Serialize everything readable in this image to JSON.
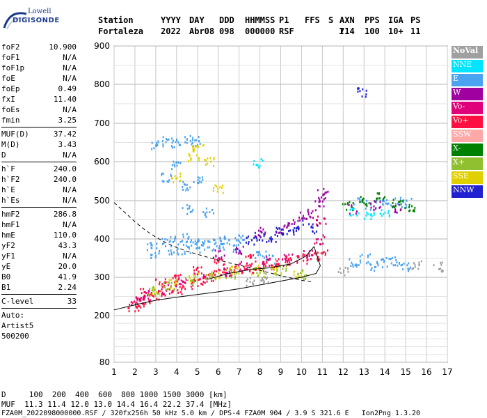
{
  "logo": {
    "line1": "Lowell",
    "line2": "DIGISONDE"
  },
  "header": {
    "labels": [
      "Station",
      "YYYY",
      "DAY",
      "DDD",
      "HHMMSS",
      "P1",
      "FFS",
      "S",
      "AXN",
      "PPS",
      "IGA",
      "PS"
    ],
    "values": [
      "Fortaleza",
      "2022",
      "Abr08",
      "098",
      "000000",
      "RSF",
      "",
      "1",
      "714",
      "100",
      "10+",
      "11"
    ]
  },
  "params": {
    "group1": [
      [
        "foF2",
        "10.900"
      ],
      [
        "foF1",
        "N/A"
      ],
      [
        "foF1p",
        "N/A"
      ],
      [
        "foE",
        "N/A"
      ],
      [
        "foEp",
        "0.49"
      ],
      [
        "fxI",
        "11.40"
      ],
      [
        "foEs",
        "N/A"
      ],
      [
        "fmin",
        "3.25"
      ]
    ],
    "group2": [
      [
        "MUF(D)",
        "37.42"
      ],
      [
        "M(D)",
        "3.43"
      ],
      [
        "D",
        "N/A"
      ]
    ],
    "group3": [
      [
        "h`F",
        "240.0"
      ],
      [
        "h`F2",
        "240.0"
      ],
      [
        "h`E",
        "N/A"
      ],
      [
        "h`Es",
        "N/A"
      ]
    ],
    "group4": [
      [
        "hmF2",
        "286.8"
      ],
      [
        "hmF1",
        "N/A"
      ],
      [
        "hmE",
        "110.0"
      ],
      [
        "yF2",
        "43.3"
      ],
      [
        "yF1",
        "N/A"
      ],
      [
        "yE",
        "20.0"
      ],
      [
        "B0",
        "41.9"
      ],
      [
        "B1",
        "2.24"
      ]
    ],
    "group5": [
      [
        "C-level",
        "33"
      ]
    ],
    "auto": [
      "Auto:",
      "Artist5",
      "500200"
    ]
  },
  "legend": [
    {
      "label": "NoVal",
      "color": "#a0a0a0"
    },
    {
      "label": "NNE",
      "color": "#00e5ff"
    },
    {
      "label": "E",
      "color": "#4aa3f0"
    },
    {
      "label": "W",
      "color": "#a000a0"
    },
    {
      "label": "Vo-",
      "color": "#e0007a"
    },
    {
      "label": "Vo+",
      "color": "#ff1040"
    },
    {
      "label": "SSW",
      "color": "#ffa8a8"
    },
    {
      "label": "X-",
      "color": "#008000"
    },
    {
      "label": "X+",
      "color": "#90c030"
    },
    {
      "label": "SSE",
      "color": "#e0d000"
    },
    {
      "label": "NNW",
      "color": "#2020d0"
    }
  ],
  "footer": {
    "line1": "D     100  200  400  600  800 1000 1500 3000 [km]",
    "line2": "MUF  11.3 11.4 12.0 13.0 14.4 16.4 22.2 37.4 [MHz]",
    "line3": "FZA0M_2022098000000.RSF / 320fx256h 50 kHz 5.0 km / DPS-4 FZA0M 904 / 3.9 S 321.6 E   Ion2Png 1.3.20"
  },
  "chart_data": {
    "type": "scatter",
    "xlim": [
      1,
      17
    ],
    "ylim": [
      80,
      900
    ],
    "x_ticks": [
      1,
      2,
      3,
      4,
      5,
      6,
      7,
      8,
      9,
      10,
      11,
      12,
      13,
      14,
      15,
      16,
      17
    ],
    "y_ticks": [
      80,
      200,
      300,
      400,
      500,
      600,
      700,
      800,
      900
    ],
    "grid": true,
    "series": [
      {
        "name": "E",
        "color": "#4aa3f0",
        "points": [
          [
            3.0,
            645
          ],
          [
            3.5,
            655
          ],
          [
            4.0,
            650
          ],
          [
            4.5,
            660
          ],
          [
            5.0,
            655
          ],
          [
            3.5,
            560
          ],
          [
            4.0,
            590
          ],
          [
            4.5,
            540
          ],
          [
            5.0,
            560
          ],
          [
            4.5,
            480
          ],
          [
            5.5,
            470
          ],
          [
            2.8,
            380
          ],
          [
            3.5,
            395
          ],
          [
            4.0,
            400
          ],
          [
            4.5,
            405
          ],
          [
            5.0,
            390
          ],
          [
            5.5,
            385
          ],
          [
            6.0,
            395
          ],
          [
            6.5,
            400
          ],
          [
            7.0,
            405
          ],
          [
            3.0,
            360
          ],
          [
            3.8,
            370
          ],
          [
            4.5,
            375
          ],
          [
            5.2,
            380
          ],
          [
            6.0,
            385
          ],
          [
            6.8,
            380
          ],
          [
            8.0,
            360
          ],
          [
            8.5,
            350
          ],
          [
            12.5,
            340
          ],
          [
            13.0,
            350
          ],
          [
            13.5,
            330
          ],
          [
            14.0,
            340
          ],
          [
            14.5,
            345
          ],
          [
            15.0,
            330
          ],
          [
            12.7,
            500
          ],
          [
            13.3,
            490
          ],
          [
            14.0,
            495
          ],
          [
            14.5,
            500
          ],
          [
            15.0,
            495
          ]
        ]
      },
      {
        "name": "Vo+",
        "color": "#ff1040",
        "points": [
          [
            1.9,
            225
          ],
          [
            2.2,
            235
          ],
          [
            2.5,
            245
          ],
          [
            3.0,
            255
          ],
          [
            3.5,
            265
          ],
          [
            4.0,
            270
          ],
          [
            4.5,
            280
          ],
          [
            5.0,
            290
          ],
          [
            5.5,
            300
          ],
          [
            6.0,
            310
          ],
          [
            6.5,
            315
          ],
          [
            7.0,
            320
          ],
          [
            7.5,
            325
          ],
          [
            8.0,
            330
          ],
          [
            8.5,
            335
          ],
          [
            9.0,
            340
          ],
          [
            9.5,
            345
          ],
          [
            10.0,
            350
          ],
          [
            10.5,
            355
          ],
          [
            11.0,
            360
          ],
          [
            2.5,
            260
          ],
          [
            3.2,
            285
          ],
          [
            4.0,
            300
          ],
          [
            5.0,
            325
          ],
          [
            6.0,
            340
          ],
          [
            7.5,
            355
          ]
        ]
      },
      {
        "name": "Vo-",
        "color": "#e0007a",
        "points": [
          [
            2.0,
            240
          ],
          [
            2.6,
            255
          ],
          [
            3.3,
            270
          ],
          [
            4.2,
            285
          ],
          [
            5.1,
            300
          ],
          [
            6.3,
            315
          ],
          [
            7.2,
            330
          ],
          [
            8.3,
            345
          ],
          [
            9.3,
            350
          ],
          [
            10.3,
            360
          ],
          [
            10.8,
            400
          ],
          [
            10.9,
            450
          ]
        ]
      },
      {
        "name": "SSE",
        "color": "#e0d000",
        "points": [
          [
            3.0,
            270
          ],
          [
            3.8,
            285
          ],
          [
            4.8,
            300
          ],
          [
            5.8,
            310
          ],
          [
            6.8,
            318
          ],
          [
            7.8,
            322
          ],
          [
            8.8,
            318
          ],
          [
            9.8,
            312
          ],
          [
            4.0,
            560
          ],
          [
            4.8,
            610
          ],
          [
            5.0,
            640
          ],
          [
            5.5,
            600
          ],
          [
            6.0,
            530
          ]
        ]
      },
      {
        "name": "X+",
        "color": "#90c030",
        "points": [
          [
            2.8,
            265
          ],
          [
            3.6,
            280
          ],
          [
            4.6,
            295
          ],
          [
            5.6,
            305
          ],
          [
            6.6,
            312
          ],
          [
            8.0,
            315
          ],
          [
            9.0,
            320
          ],
          [
            10.0,
            310
          ]
        ]
      },
      {
        "name": "W",
        "color": "#a000a0",
        "points": [
          [
            6.0,
            360
          ],
          [
            7.0,
            375
          ],
          [
            8.0,
            420
          ],
          [
            9.0,
            430
          ],
          [
            9.5,
            440
          ],
          [
            10.0,
            460
          ],
          [
            10.5,
            470
          ],
          [
            10.8,
            500
          ],
          [
            11.0,
            520
          ],
          [
            12.5,
            480
          ],
          [
            13.5,
            490
          ],
          [
            14.5,
            480
          ]
        ]
      },
      {
        "name": "NNW",
        "color": "#2020d0",
        "points": [
          [
            7.5,
            400
          ],
          [
            8.0,
            410
          ],
          [
            8.5,
            405
          ],
          [
            9.0,
            420
          ],
          [
            9.5,
            425
          ],
          [
            10.0,
            440
          ],
          [
            10.5,
            430
          ],
          [
            12.9,
            780
          ]
        ]
      },
      {
        "name": "X-",
        "color": "#008000",
        "points": [
          [
            12.2,
            490
          ],
          [
            13.0,
            500
          ],
          [
            13.8,
            510
          ],
          [
            14.6,
            495
          ],
          [
            15.2,
            485
          ]
        ]
      },
      {
        "name": "NNE",
        "color": "#00e5ff",
        "points": [
          [
            7.9,
            600
          ],
          [
            12.5,
            470
          ],
          [
            13.2,
            460
          ],
          [
            14.0,
            470
          ]
        ]
      },
      {
        "name": "NoVal",
        "color": "#a0a0a0",
        "points": [
          [
            7.5,
            290
          ],
          [
            8.2,
            300
          ],
          [
            12.0,
            320
          ],
          [
            15.5,
            335
          ],
          [
            16.5,
            330
          ]
        ]
      }
    ],
    "curves": [
      {
        "style": "dashed",
        "points": [
          [
            1.0,
            495
          ],
          [
            1.5,
            470
          ],
          [
            2.0,
            445
          ],
          [
            2.5,
            423
          ],
          [
            3.0,
            405
          ],
          [
            3.5,
            390
          ],
          [
            4.0,
            378
          ],
          [
            4.5,
            368
          ],
          [
            5.0,
            360
          ],
          [
            5.5,
            352
          ],
          [
            6.0,
            345
          ],
          [
            6.5,
            338
          ],
          [
            7.0,
            332
          ],
          [
            7.5,
            325
          ],
          [
            8.0,
            318
          ],
          [
            8.5,
            311
          ],
          [
            9.0,
            304
          ],
          [
            9.5,
            298
          ],
          [
            10.0,
            292
          ],
          [
            10.5,
            288
          ]
        ]
      },
      {
        "style": "solid",
        "points": [
          [
            1.0,
            215
          ],
          [
            2.0,
            228
          ],
          [
            3.0,
            240
          ],
          [
            4.0,
            248
          ],
          [
            5.0,
            255
          ],
          [
            6.0,
            262
          ],
          [
            7.0,
            270
          ],
          [
            8.0,
            280
          ],
          [
            9.0,
            290
          ],
          [
            10.0,
            300
          ],
          [
            10.7,
            310
          ],
          [
            10.9,
            330
          ],
          [
            10.6,
            380
          ],
          [
            10.2,
            355
          ],
          [
            9.5,
            335
          ],
          [
            8.5,
            325
          ],
          [
            7.5,
            320
          ],
          [
            6.5,
            310
          ],
          [
            5.5,
            295
          ]
        ]
      }
    ]
  }
}
